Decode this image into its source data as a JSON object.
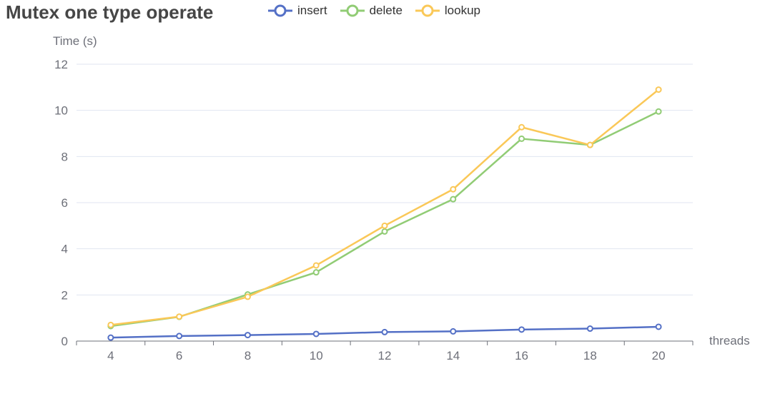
{
  "chart_data": {
    "type": "line",
    "title": "Mutex one type operate",
    "xlabel": "threads",
    "ylabel": "Time (s)",
    "categories": [
      4,
      6,
      8,
      10,
      12,
      14,
      16,
      18,
      20
    ],
    "ylim": [
      0,
      12
    ],
    "yticks": [
      0,
      2,
      4,
      6,
      8,
      10,
      12
    ],
    "grid": true,
    "legend_position": "top",
    "series": [
      {
        "name": "insert",
        "color": "#5470c6",
        "values": [
          0.15,
          0.22,
          0.26,
          0.31,
          0.39,
          0.42,
          0.5,
          0.54,
          0.62
        ]
      },
      {
        "name": "delete",
        "color": "#91cc75",
        "values": [
          0.65,
          1.05,
          2.02,
          2.98,
          4.75,
          6.15,
          8.77,
          8.5,
          9.95
        ]
      },
      {
        "name": "lookup",
        "color": "#fac858",
        "values": [
          0.7,
          1.06,
          1.92,
          3.28,
          5.0,
          6.58,
          9.27,
          8.5,
          10.9
        ]
      }
    ]
  }
}
